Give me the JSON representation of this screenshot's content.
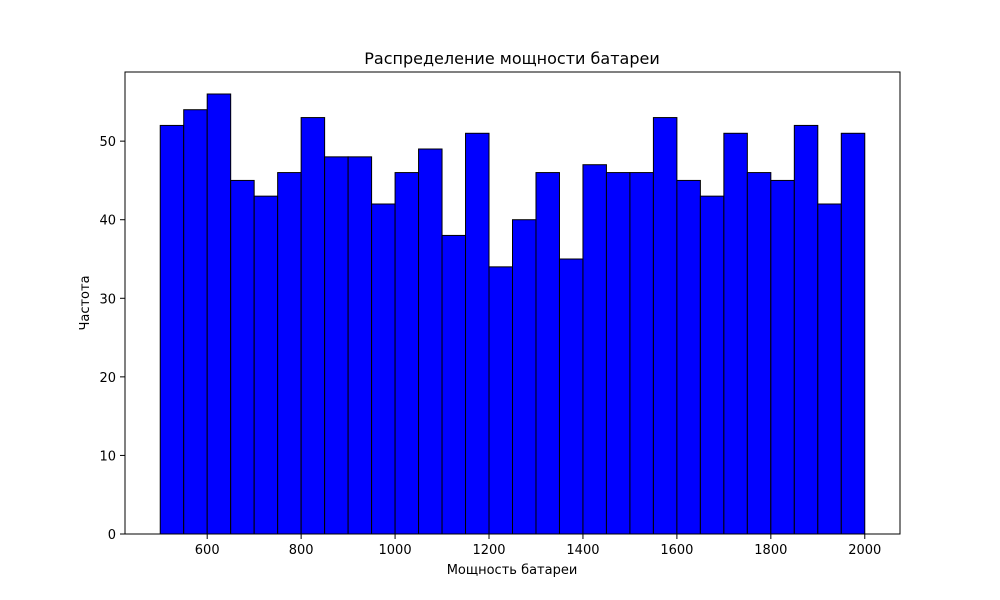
{
  "chart_data": {
    "type": "bar",
    "subtype": "histogram",
    "title": "Распределение мощности батареи",
    "xlabel": "Мощность батареи",
    "ylabel": "Частота",
    "bin_start": 500,
    "bin_width": 50,
    "values": [
      52,
      54,
      56,
      45,
      43,
      46,
      53,
      48,
      48,
      42,
      46,
      49,
      38,
      51,
      34,
      40,
      46,
      35,
      47,
      46,
      46,
      53,
      45,
      43,
      51,
      46,
      45,
      52,
      42,
      51
    ],
    "xlim": [
      425,
      2075
    ],
    "ylim": [
      0,
      58.8
    ],
    "xticks": [
      600,
      800,
      1000,
      1200,
      1400,
      1600,
      1800,
      2000
    ],
    "xtick_labels": [
      "600",
      "800",
      "1000",
      "1200",
      "1400",
      "1600",
      "1800",
      "2000"
    ],
    "yticks": [
      0,
      10,
      20,
      30,
      40,
      50
    ],
    "ytick_labels": [
      "0",
      "10",
      "20",
      "30",
      "40",
      "50"
    ],
    "bar_color": "#0000ff",
    "edge_color": "#000000",
    "grid": false
  }
}
